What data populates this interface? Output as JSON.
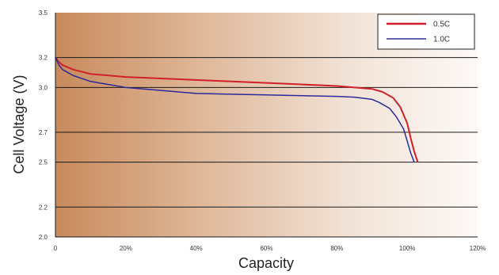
{
  "chart_data": {
    "type": "line",
    "xlabel": "Capacity",
    "ylabel": "Cell Voltage (V)",
    "xlim": [
      0,
      120
    ],
    "ylim": [
      2.0,
      3.5
    ],
    "x_ticks": [
      {
        "value": 0,
        "label": "0"
      },
      {
        "value": 20,
        "label": "20%"
      },
      {
        "value": 40,
        "label": "40%"
      },
      {
        "value": 60,
        "label": "60%"
      },
      {
        "value": 80,
        "label": "80%"
      },
      {
        "value": 100,
        "label": "100%"
      },
      {
        "value": 120,
        "label": "120%"
      }
    ],
    "y_ticks": [
      {
        "value": 2.0,
        "label": "2.0"
      },
      {
        "value": 2.2,
        "label": "2.2"
      },
      {
        "value": 2.5,
        "label": "2.5"
      },
      {
        "value": 2.7,
        "label": "2.7"
      },
      {
        "value": 3.0,
        "label": "3.0"
      },
      {
        "value": 3.2,
        "label": "3.2"
      },
      {
        "value": 3.5,
        "label": "3.5"
      }
    ],
    "gridlines_y": [
      2.2,
      2.5,
      2.7,
      3.0,
      3.2
    ],
    "grid": true,
    "legend_position": "top-right",
    "series": [
      {
        "name": "0.5C",
        "color": "#d0202a",
        "x": [
          0,
          1,
          2,
          5,
          10,
          20,
          30,
          40,
          50,
          60,
          70,
          80,
          85,
          90,
          93,
          96,
          98,
          100,
          101,
          102,
          103
        ],
        "y": [
          3.2,
          3.17,
          3.15,
          3.12,
          3.09,
          3.07,
          3.06,
          3.05,
          3.04,
          3.03,
          3.02,
          3.01,
          3.0,
          2.99,
          2.97,
          2.93,
          2.87,
          2.76,
          2.66,
          2.57,
          2.5
        ]
      },
      {
        "name": "1.0C",
        "color": "#2a2a9a",
        "x": [
          0,
          1,
          2,
          5,
          10,
          20,
          30,
          40,
          50,
          60,
          70,
          80,
          85,
          90,
          92,
          95,
          97,
          99,
          100,
          101,
          102
        ],
        "y": [
          3.2,
          3.15,
          3.12,
          3.08,
          3.04,
          3.0,
          2.98,
          2.96,
          2.955,
          2.95,
          2.945,
          2.94,
          2.935,
          2.92,
          2.9,
          2.86,
          2.8,
          2.72,
          2.64,
          2.56,
          2.5
        ]
      }
    ]
  }
}
